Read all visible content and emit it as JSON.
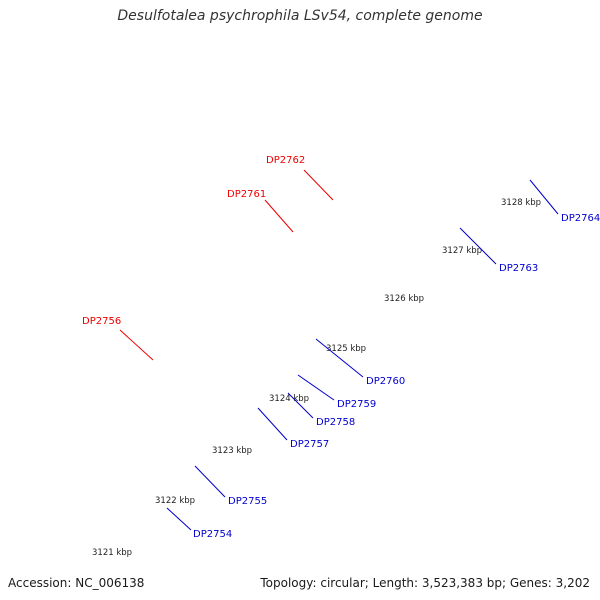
{
  "title": "Desulfotalea psychrophila LSv54, complete genome",
  "accession": "Accession: NC_006138",
  "topology": "Topology: circular; Length: 3,523,383 bp; Genes: 3,202",
  "colors": {
    "backbone": "#9e9e9e",
    "tick": "#1a7a1a",
    "blue": "#0000ee",
    "red": "#ee0000",
    "pink": "#ff1493",
    "grey": "#777777",
    "salmon": "#f08080",
    "cyan": "#00ffff",
    "olive": "#6b8e23",
    "navy": "#000080",
    "silver": "#c0c0c0",
    "label_blue": "#0000cc",
    "label_red": "#ee0000"
  },
  "kbp_ticks": [
    "3121 kbp",
    "3122 kbp",
    "3123 kbp",
    "3124 kbp",
    "3125 kbp",
    "3126 kbp",
    "3127 kbp",
    "3128 kbp"
  ],
  "gene_labels": [
    {
      "name": "DP2754",
      "color": "blue"
    },
    {
      "name": "DP2755",
      "color": "blue"
    },
    {
      "name": "DP2756",
      "color": "red"
    },
    {
      "name": "DP2757",
      "color": "blue"
    },
    {
      "name": "DP2758",
      "color": "blue"
    },
    {
      "name": "DP2759",
      "color": "blue"
    },
    {
      "name": "DP2760",
      "color": "blue"
    },
    {
      "name": "DP2761",
      "color": "red"
    },
    {
      "name": "DP2762",
      "color": "red"
    },
    {
      "name": "DP2763",
      "color": "blue"
    },
    {
      "name": "DP2764",
      "color": "blue"
    }
  ]
}
